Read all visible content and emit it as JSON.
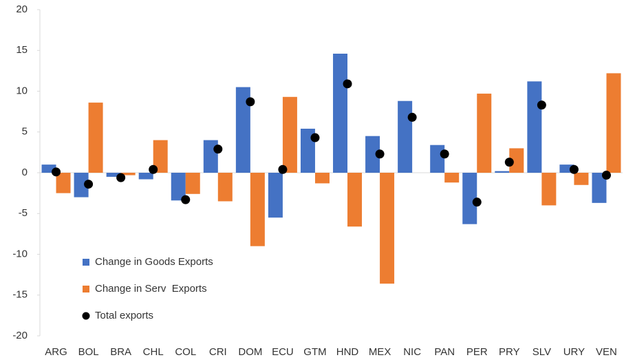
{
  "chart_data": {
    "type": "bar",
    "categories": [
      "ARG",
      "BOL",
      "BRA",
      "CHL",
      "COL",
      "CRI",
      "DOM",
      "ECU",
      "GTM",
      "HND",
      "MEX",
      "NIC",
      "PAN",
      "PER",
      "PRY",
      "SLV",
      "URY",
      "VEN"
    ],
    "series": [
      {
        "name": "Change in Goods Exports",
        "color": "#4472c4",
        "values": [
          1.0,
          -3.0,
          -0.5,
          -0.8,
          -3.4,
          4.0,
          10.5,
          -5.5,
          5.4,
          14.6,
          4.5,
          8.8,
          3.4,
          -6.3,
          0.2,
          11.2,
          1.0,
          -3.7
        ]
      },
      {
        "name": "Change in Serv  Exports",
        "color": "#ed7d31",
        "values": [
          -2.5,
          8.6,
          -0.3,
          4.0,
          -2.6,
          -3.5,
          -9.0,
          9.3,
          -1.3,
          -6.6,
          -13.6,
          0.0,
          -1.2,
          9.7,
          3.0,
          -4.0,
          -1.5,
          12.2
        ]
      },
      {
        "name": "Total exports",
        "color": "#000000",
        "type": "scatter",
        "values": [
          0.1,
          -1.4,
          -0.6,
          0.4,
          -3.3,
          2.9,
          8.7,
          0.4,
          4.3,
          10.9,
          2.3,
          6.8,
          2.3,
          -3.6,
          1.3,
          8.3,
          0.4,
          -0.3
        ]
      }
    ],
    "ylim": [
      -20,
      20
    ],
    "yticks": [
      -20,
      -15,
      -10,
      -5,
      0,
      5,
      10,
      15,
      20
    ],
    "legend": "lower left"
  }
}
